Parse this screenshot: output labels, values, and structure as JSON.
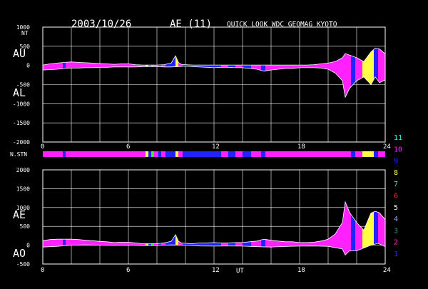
{
  "header": {
    "date": "2003/10/26",
    "index": "AE (11)",
    "source": "QUICK LOOK  WDC GEOMAG KYOTO"
  },
  "colors": {
    "background": "#000000",
    "axes": "#ffffff",
    "grid": "#ffffff",
    "envelope": "#ffffff",
    "station_colors": {
      "1": "#1a2cff",
      "2": "#ff2bd5",
      "3": "#1e9a7a",
      "4": "#9aa0ff",
      "5": "#ffffff",
      "6": "#ff2a2a",
      "7": "#2aff2a",
      "8": "#ffff44",
      "9": "#2222ff",
      "10": "#ff22ff",
      "11": "#22ffff"
    }
  },
  "legend": {
    "numbers": [
      "11",
      "10",
      "9",
      "8",
      "7",
      "6",
      "5",
      "4",
      "3",
      "2",
      "1"
    ]
  },
  "station_bar": {
    "label": "N.STN",
    "segments": [
      {
        "start": 0.0,
        "end": 1.4,
        "color": "10"
      },
      {
        "start": 1.4,
        "end": 1.6,
        "color": "9"
      },
      {
        "start": 1.6,
        "end": 7.2,
        "color": "10"
      },
      {
        "start": 7.2,
        "end": 7.4,
        "color": "8"
      },
      {
        "start": 7.4,
        "end": 7.6,
        "color": "9"
      },
      {
        "start": 7.6,
        "end": 7.8,
        "color": "7"
      },
      {
        "start": 7.8,
        "end": 8.1,
        "color": "10"
      },
      {
        "start": 8.1,
        "end": 8.3,
        "color": "9"
      },
      {
        "start": 8.3,
        "end": 8.6,
        "color": "10"
      },
      {
        "start": 8.6,
        "end": 9.3,
        "color": "9"
      },
      {
        "start": 9.3,
        "end": 9.5,
        "color": "8"
      },
      {
        "start": 9.5,
        "end": 9.8,
        "color": "10"
      },
      {
        "start": 9.8,
        "end": 10.5,
        "color": "9"
      },
      {
        "start": 10.5,
        "end": 12.5,
        "color": "9"
      },
      {
        "start": 12.5,
        "end": 13.0,
        "color": "10"
      },
      {
        "start": 13.0,
        "end": 13.5,
        "color": "9"
      },
      {
        "start": 13.5,
        "end": 14.0,
        "color": "10"
      },
      {
        "start": 14.0,
        "end": 14.6,
        "color": "9"
      },
      {
        "start": 14.6,
        "end": 15.3,
        "color": "10"
      },
      {
        "start": 15.3,
        "end": 15.6,
        "color": "9"
      },
      {
        "start": 15.6,
        "end": 21.6,
        "color": "10"
      },
      {
        "start": 21.6,
        "end": 21.9,
        "color": "9"
      },
      {
        "start": 21.9,
        "end": 22.4,
        "color": "10"
      },
      {
        "start": 22.4,
        "end": 23.2,
        "color": "8"
      },
      {
        "start": 23.2,
        "end": 23.5,
        "color": "9"
      },
      {
        "start": 23.5,
        "end": 24.0,
        "color": "10"
      }
    ]
  },
  "chart_data": [
    {
      "type": "area",
      "panel": "AU / AL",
      "labels": [
        "AU",
        "AL"
      ],
      "unit": "NT",
      "xlim": [
        0,
        24
      ],
      "ylim": [
        -2000,
        1000
      ],
      "x_ticks": [
        0,
        6,
        12,
        18,
        24
      ],
      "x_tick_labels": [
        "0",
        "6",
        "12",
        "18",
        "24"
      ],
      "y_ticks": [
        1000,
        500,
        0,
        -500,
        -1000,
        -1500,
        -2000
      ],
      "y_tick_labels": [
        "1000",
        "500",
        "0",
        "-500",
        "-1000",
        "-1500",
        "-2000"
      ],
      "grid": true,
      "series": [
        {
          "name": "AU",
          "x": [
            0,
            0.5,
            1,
            1.5,
            2,
            2.5,
            3,
            3.5,
            4,
            4.5,
            5,
            5.5,
            6,
            6.5,
            7,
            7.5,
            8,
            8.5,
            9,
            9.3,
            9.5,
            9.7,
            10,
            10.5,
            11,
            11.5,
            12,
            12.5,
            13,
            13.5,
            14,
            14.5,
            15,
            15.5,
            16,
            16.5,
            17,
            17.5,
            18,
            18.5,
            19,
            19.5,
            20,
            20.5,
            21,
            21.2,
            21.5,
            22,
            22.5,
            23,
            23.3,
            23.6,
            24
          ],
          "values": [
            10,
            40,
            60,
            80,
            90,
            80,
            70,
            60,
            50,
            40,
            30,
            40,
            40,
            20,
            10,
            10,
            10,
            20,
            60,
            250,
            80,
            30,
            20,
            10,
            10,
            10,
            10,
            10,
            10,
            10,
            10,
            10,
            10,
            10,
            10,
            10,
            10,
            10,
            10,
            10,
            20,
            40,
            60,
            100,
            200,
            310,
            270,
            200,
            100,
            350,
            450,
            430,
            300
          ]
        },
        {
          "name": "AL",
          "x": [
            0,
            0.5,
            1,
            1.5,
            2,
            2.5,
            3,
            3.5,
            4,
            4.5,
            5,
            5.5,
            6,
            6.5,
            7,
            7.5,
            8,
            8.5,
            9,
            9.5,
            10,
            10.5,
            11,
            11.5,
            12,
            12.5,
            13,
            13.5,
            14,
            14.5,
            15,
            15.5,
            16,
            16.5,
            17,
            17.5,
            18,
            18.5,
            19,
            19.5,
            20,
            20.5,
            21,
            21.2,
            21.5,
            22,
            22.5,
            23,
            23.3,
            23.6,
            24
          ],
          "values": [
            -120,
            -110,
            -100,
            -80,
            -70,
            -70,
            -60,
            -60,
            -50,
            -50,
            -40,
            -40,
            -40,
            -40,
            -30,
            -30,
            -30,
            -40,
            -40,
            -30,
            -20,
            -30,
            -40,
            -50,
            -60,
            -50,
            -50,
            -60,
            -60,
            -80,
            -100,
            -150,
            -120,
            -100,
            -80,
            -80,
            -60,
            -60,
            -60,
            -70,
            -100,
            -200,
            -400,
            -830,
            -600,
            -400,
            -300,
            -500,
            -300,
            -450,
            -380
          ]
        }
      ]
    },
    {
      "type": "area",
      "panel": "AE / AO",
      "labels": [
        "AE",
        "AO"
      ],
      "xlabel": "UT",
      "xlim": [
        0,
        24
      ],
      "ylim": [
        -500,
        2000
      ],
      "x_ticks": [
        0,
        6,
        12,
        18,
        24
      ],
      "x_tick_labels": [
        "0",
        "6",
        "12",
        "18",
        "24"
      ],
      "y_ticks": [
        2000,
        1500,
        1000,
        500,
        0,
        -500
      ],
      "y_tick_labels": [
        "2000",
        "1500",
        "1000",
        "500",
        "0",
        "-500"
      ],
      "grid": true,
      "series": [
        {
          "name": "AE",
          "x": [
            0,
            0.5,
            1,
            1.5,
            2,
            2.5,
            3,
            3.5,
            4,
            4.5,
            5,
            5.5,
            6,
            6.5,
            7,
            7.5,
            8,
            8.5,
            9,
            9.3,
            9.5,
            9.7,
            10,
            10.5,
            11,
            11.5,
            12,
            12.5,
            13,
            13.5,
            14,
            14.5,
            15,
            15.5,
            16,
            16.5,
            17,
            17.5,
            18,
            18.5,
            19,
            19.5,
            20,
            20.5,
            21,
            21.2,
            21.5,
            22,
            22.5,
            23,
            23.3,
            23.6,
            24
          ],
          "values": [
            120,
            150,
            160,
            160,
            160,
            150,
            130,
            120,
            100,
            90,
            70,
            80,
            80,
            60,
            40,
            40,
            40,
            60,
            100,
            280,
            110,
            60,
            50,
            40,
            60,
            60,
            70,
            60,
            60,
            70,
            70,
            90,
            110,
            160,
            130,
            110,
            90,
            90,
            70,
            70,
            80,
            110,
            160,
            300,
            600,
            1150,
            870,
            600,
            400,
            850,
            900,
            860,
            680
          ]
        },
        {
          "name": "AO",
          "x": [
            0,
            1,
            2,
            3,
            4,
            5,
            6,
            7,
            8,
            9,
            10,
            11,
            12,
            13,
            14,
            15,
            16,
            17,
            18,
            19,
            20,
            21,
            21.2,
            21.5,
            22,
            23,
            23.5,
            24
          ],
          "values": [
            -50,
            -30,
            0,
            10,
            0,
            -5,
            0,
            -10,
            -10,
            10,
            0,
            -20,
            -25,
            -20,
            -25,
            -40,
            -50,
            -35,
            -25,
            -20,
            -30,
            -100,
            -260,
            -150,
            -150,
            0,
            50,
            -40
          ]
        }
      ]
    }
  ]
}
